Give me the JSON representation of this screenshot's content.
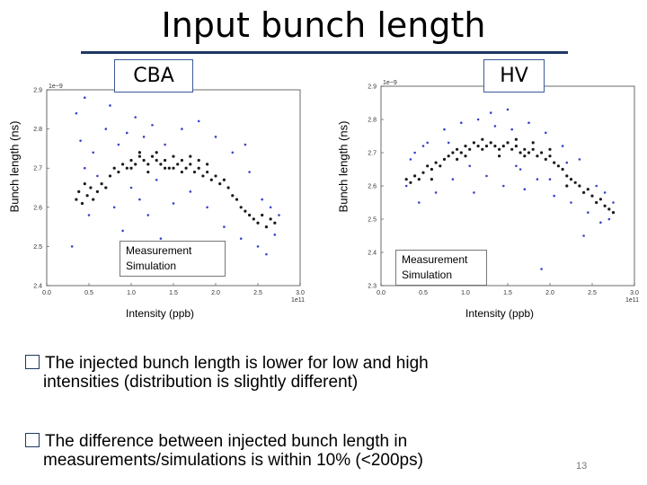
{
  "slide": {
    "title": "Input bunch length",
    "slide_number": "13",
    "bullets": [
      {
        "line1": "The injected bunch length is lower for low and high",
        "line2": "intensities (distribution is slightly different)"
      },
      {
        "line1": "The difference between injected bunch length in",
        "line2": "measurements/simulations is within 10% (<200ps)"
      }
    ],
    "colors": {
      "title_rule": "#1f3864",
      "measurement": "#1a1a1a",
      "simulation": "#3a43c9"
    }
  },
  "chart_data": [
    {
      "type": "scatter",
      "panel_label": "CBA",
      "xlabel": "Intensity (ppb)",
      "ylabel": "Bunch length (ns)",
      "x_multiplier": "1e11",
      "y_multiplier": "1e−9",
      "xlim": [
        0.0,
        3.0
      ],
      "ylim": [
        2.4,
        2.9
      ],
      "xticks": [
        "0.0",
        "0.5",
        "1.0",
        "1.5",
        "2.0",
        "2.5",
        "3.0"
      ],
      "yticks": [
        "2.4",
        "2.5",
        "2.6",
        "2.7",
        "2.8",
        "2.9"
      ],
      "legend": [
        "Measurement",
        "Simulation"
      ],
      "series": [
        {
          "name": "Measurement",
          "points": [
            [
              0.35,
              2.62
            ],
            [
              0.38,
              2.64
            ],
            [
              0.42,
              2.61
            ],
            [
              0.45,
              2.66
            ],
            [
              0.48,
              2.63
            ],
            [
              0.52,
              2.65
            ],
            [
              0.55,
              2.62
            ],
            [
              0.6,
              2.64
            ],
            [
              0.65,
              2.66
            ],
            [
              0.7,
              2.65
            ],
            [
              0.75,
              2.68
            ],
            [
              0.8,
              2.7
            ],
            [
              0.85,
              2.69
            ],
            [
              0.9,
              2.71
            ],
            [
              0.95,
              2.7
            ],
            [
              1.0,
              2.72
            ],
            [
              1.05,
              2.71
            ],
            [
              1.1,
              2.73
            ],
            [
              1.15,
              2.72
            ],
            [
              1.2,
              2.71
            ],
            [
              1.25,
              2.73
            ],
            [
              1.3,
              2.72
            ],
            [
              1.35,
              2.71
            ],
            [
              1.4,
              2.72
            ],
            [
              1.45,
              2.7
            ],
            [
              1.5,
              2.73
            ],
            [
              1.55,
              2.71
            ],
            [
              1.6,
              2.72
            ],
            [
              1.65,
              2.7
            ],
            [
              1.7,
              2.71
            ],
            [
              1.75,
              2.69
            ],
            [
              1.8,
              2.7
            ],
            [
              1.85,
              2.68
            ],
            [
              1.9,
              2.69
            ],
            [
              1.95,
              2.67
            ],
            [
              2.0,
              2.68
            ],
            [
              2.05,
              2.66
            ],
            [
              2.1,
              2.67
            ],
            [
              2.15,
              2.65
            ],
            [
              2.2,
              2.63
            ],
            [
              2.25,
              2.62
            ],
            [
              2.3,
              2.6
            ],
            [
              2.35,
              2.59
            ],
            [
              2.4,
              2.58
            ],
            [
              2.45,
              2.57
            ],
            [
              2.5,
              2.56
            ],
            [
              2.55,
              2.58
            ],
            [
              2.6,
              2.55
            ],
            [
              2.65,
              2.57
            ],
            [
              2.7,
              2.56
            ],
            [
              1.0,
              2.7
            ],
            [
              1.1,
              2.74
            ],
            [
              1.2,
              2.69
            ],
            [
              1.3,
              2.74
            ],
            [
              1.4,
              2.7
            ],
            [
              1.5,
              2.7
            ],
            [
              1.6,
              2.69
            ],
            [
              1.7,
              2.73
            ],
            [
              1.8,
              2.72
            ],
            [
              1.9,
              2.71
            ]
          ]
        },
        {
          "name": "Simulation",
          "points": [
            [
              0.35,
              2.84
            ],
            [
              0.4,
              2.77
            ],
            [
              0.45,
              2.7
            ],
            [
              0.5,
              2.58
            ],
            [
              0.55,
              2.74
            ],
            [
              0.6,
              2.68
            ],
            [
              0.7,
              2.8
            ],
            [
              0.75,
              2.86
            ],
            [
              0.8,
              2.6
            ],
            [
              0.85,
              2.76
            ],
            [
              0.9,
              2.54
            ],
            [
              0.95,
              2.79
            ],
            [
              1.0,
              2.65
            ],
            [
              1.05,
              2.83
            ],
            [
              1.1,
              2.62
            ],
            [
              1.15,
              2.78
            ],
            [
              1.2,
              2.58
            ],
            [
              1.25,
              2.81
            ],
            [
              1.3,
              2.67
            ],
            [
              1.4,
              2.76
            ],
            [
              1.5,
              2.61
            ],
            [
              1.6,
              2.8
            ],
            [
              1.7,
              2.64
            ],
            [
              1.8,
              2.82
            ],
            [
              1.9,
              2.6
            ],
            [
              2.0,
              2.78
            ],
            [
              2.1,
              2.55
            ],
            [
              2.2,
              2.74
            ],
            [
              2.3,
              2.52
            ],
            [
              2.4,
              2.69
            ],
            [
              2.5,
              2.5
            ],
            [
              2.55,
              2.62
            ],
            [
              2.6,
              2.48
            ],
            [
              2.65,
              2.6
            ],
            [
              2.7,
              2.53
            ],
            [
              2.75,
              2.58
            ],
            [
              0.3,
              2.5
            ],
            [
              0.45,
              2.88
            ],
            [
              1.35,
              2.52
            ],
            [
              2.35,
              2.76
            ]
          ]
        }
      ]
    },
    {
      "type": "scatter",
      "panel_label": "HV",
      "xlabel": "Intensity (ppb)",
      "ylabel": "Bunch length (ns)",
      "x_multiplier": "1e11",
      "y_multiplier": "1e−9",
      "xlim": [
        0.0,
        3.0
      ],
      "ylim": [
        2.3,
        2.9
      ],
      "xticks": [
        "0.0",
        "0.5",
        "1.0",
        "1.5",
        "2.0",
        "2.5",
        "3.0"
      ],
      "yticks": [
        "2.3",
        "2.4",
        "2.5",
        "2.6",
        "2.7",
        "2.8",
        "2.9"
      ],
      "legend": [
        "Measurement",
        "Simulation"
      ],
      "series": [
        {
          "name": "Measurement",
          "points": [
            [
              0.3,
              2.62
            ],
            [
              0.35,
              2.61
            ],
            [
              0.4,
              2.63
            ],
            [
              0.45,
              2.62
            ],
            [
              0.5,
              2.64
            ],
            [
              0.55,
              2.66
            ],
            [
              0.6,
              2.65
            ],
            [
              0.65,
              2.67
            ],
            [
              0.7,
              2.66
            ],
            [
              0.75,
              2.68
            ],
            [
              0.8,
              2.69
            ],
            [
              0.85,
              2.7
            ],
            [
              0.9,
              2.71
            ],
            [
              0.95,
              2.7
            ],
            [
              1.0,
              2.72
            ],
            [
              1.05,
              2.71
            ],
            [
              1.1,
              2.73
            ],
            [
              1.15,
              2.72
            ],
            [
              1.2,
              2.71
            ],
            [
              1.25,
              2.72
            ],
            [
              1.3,
              2.73
            ],
            [
              1.35,
              2.72
            ],
            [
              1.4,
              2.71
            ],
            [
              1.45,
              2.72
            ],
            [
              1.5,
              2.73
            ],
            [
              1.55,
              2.71
            ],
            [
              1.6,
              2.72
            ],
            [
              1.65,
              2.7
            ],
            [
              1.7,
              2.71
            ],
            [
              1.75,
              2.7
            ],
            [
              1.8,
              2.71
            ],
            [
              1.85,
              2.69
            ],
            [
              1.9,
              2.7
            ],
            [
              1.95,
              2.68
            ],
            [
              2.0,
              2.69
            ],
            [
              2.05,
              2.67
            ],
            [
              2.1,
              2.66
            ],
            [
              2.15,
              2.65
            ],
            [
              2.2,
              2.63
            ],
            [
              2.25,
              2.62
            ],
            [
              2.3,
              2.61
            ],
            [
              2.35,
              2.6
            ],
            [
              2.4,
              2.58
            ],
            [
              2.45,
              2.59
            ],
            [
              2.5,
              2.57
            ],
            [
              2.55,
              2.55
            ],
            [
              2.6,
              2.56
            ],
            [
              2.65,
              2.54
            ],
            [
              2.7,
              2.53
            ],
            [
              2.75,
              2.52
            ],
            [
              1.0,
              2.69
            ],
            [
              1.2,
              2.74
            ],
            [
              1.4,
              2.69
            ],
            [
              1.6,
              2.74
            ],
            [
              1.8,
              2.73
            ],
            [
              2.0,
              2.71
            ],
            [
              0.6,
              2.62
            ],
            [
              0.9,
              2.68
            ],
            [
              1.7,
              2.69
            ],
            [
              2.2,
              2.6
            ]
          ]
        },
        {
          "name": "Simulation",
          "points": [
            [
              0.3,
              2.6
            ],
            [
              0.35,
              2.68
            ],
            [
              0.45,
              2.55
            ],
            [
              0.55,
              2.73
            ],
            [
              0.65,
              2.58
            ],
            [
              0.75,
              2.77
            ],
            [
              0.85,
              2.62
            ],
            [
              0.95,
              2.79
            ],
            [
              1.05,
              2.66
            ],
            [
              1.15,
              2.8
            ],
            [
              1.25,
              2.63
            ],
            [
              1.35,
              2.78
            ],
            [
              1.45,
              2.6
            ],
            [
              1.55,
              2.77
            ],
            [
              1.65,
              2.65
            ],
            [
              1.75,
              2.79
            ],
            [
              1.85,
              2.62
            ],
            [
              1.95,
              2.76
            ],
            [
              2.05,
              2.57
            ],
            [
              2.15,
              2.72
            ],
            [
              2.25,
              2.55
            ],
            [
              2.35,
              2.68
            ],
            [
              2.45,
              2.52
            ],
            [
              2.55,
              2.6
            ],
            [
              2.6,
              2.49
            ],
            [
              2.65,
              2.58
            ],
            [
              2.7,
              2.5
            ],
            [
              2.75,
              2.55
            ],
            [
              1.9,
              2.35
            ],
            [
              2.4,
              2.45
            ],
            [
              0.5,
              2.72
            ],
            [
              1.1,
              2.58
            ],
            [
              1.5,
              2.83
            ],
            [
              2.0,
              2.62
            ],
            [
              0.8,
              2.73
            ],
            [
              1.3,
              2.82
            ],
            [
              1.7,
              2.59
            ],
            [
              2.2,
              2.67
            ],
            [
              0.4,
              2.7
            ],
            [
              1.6,
              2.66
            ]
          ]
        }
      ]
    }
  ]
}
